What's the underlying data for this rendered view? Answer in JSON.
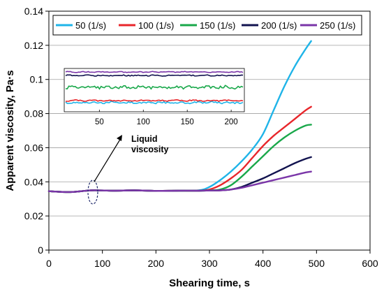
{
  "chart_data": {
    "type": "line",
    "xlabel": "Shearing time, s",
    "ylabel": "Apparent viscosity, Pa·s",
    "xlim": [
      0,
      600
    ],
    "ylim": [
      0,
      0.14
    ],
    "xticks": [
      0,
      100,
      200,
      300,
      400,
      500,
      600
    ],
    "yticks": [
      0,
      0.02,
      0.04,
      0.06,
      0.08,
      0.1,
      0.12,
      0.14
    ],
    "xtick_labels": [
      "0",
      "100",
      "200",
      "300",
      "400",
      "500",
      "600"
    ],
    "ytick_labels": [
      "0",
      "0.02",
      "0.04",
      "0.06",
      "0.08",
      "0.1",
      "0.12",
      "0.14"
    ],
    "grid": "horizontal",
    "legend_position": "top",
    "series": [
      {
        "name": "50  (1/s)",
        "color": "#1fb4e8",
        "x": [
          0,
          40,
          80,
          120,
          160,
          200,
          240,
          280,
          300,
          320,
          340,
          360,
          380,
          400,
          420,
          440,
          460,
          480,
          490
        ],
        "y": [
          0.0345,
          0.034,
          0.035,
          0.0348,
          0.035,
          0.0347,
          0.0348,
          0.035,
          0.037,
          0.041,
          0.046,
          0.052,
          0.059,
          0.068,
          0.082,
          0.096,
          0.108,
          0.118,
          0.1225
        ]
      },
      {
        "name": "100 (1/s)",
        "color": "#e8262b",
        "x": [
          0,
          40,
          80,
          120,
          160,
          200,
          240,
          280,
          300,
          320,
          340,
          360,
          380,
          400,
          420,
          440,
          460,
          480,
          490
        ],
        "y": [
          0.0345,
          0.034,
          0.035,
          0.0348,
          0.035,
          0.0347,
          0.0348,
          0.0348,
          0.0355,
          0.038,
          0.042,
          0.047,
          0.054,
          0.061,
          0.067,
          0.072,
          0.077,
          0.082,
          0.084
        ]
      },
      {
        "name": "150 (1/s)",
        "color": "#19a84a",
        "x": [
          0,
          40,
          80,
          120,
          160,
          200,
          240,
          280,
          300,
          320,
          340,
          360,
          380,
          400,
          420,
          440,
          460,
          480,
          490
        ],
        "y": [
          0.0345,
          0.034,
          0.035,
          0.0348,
          0.035,
          0.0347,
          0.0348,
          0.0348,
          0.035,
          0.0355,
          0.038,
          0.043,
          0.049,
          0.055,
          0.061,
          0.066,
          0.07,
          0.073,
          0.0735
        ]
      },
      {
        "name": "200 (1/s)",
        "color": "#12134f",
        "x": [
          0,
          40,
          80,
          120,
          160,
          200,
          240,
          280,
          300,
          320,
          340,
          360,
          380,
          400,
          420,
          440,
          460,
          480,
          490
        ],
        "y": [
          0.0345,
          0.034,
          0.035,
          0.0348,
          0.035,
          0.0347,
          0.0348,
          0.0348,
          0.0349,
          0.035,
          0.0355,
          0.037,
          0.0395,
          0.042,
          0.045,
          0.048,
          0.051,
          0.0535,
          0.0545
        ]
      },
      {
        "name": "250 (1/s)",
        "color": "#7a35a8",
        "x": [
          0,
          40,
          80,
          120,
          160,
          200,
          240,
          280,
          300,
          320,
          340,
          360,
          380,
          400,
          420,
          440,
          460,
          480,
          490
        ],
        "y": [
          0.0345,
          0.034,
          0.035,
          0.0348,
          0.035,
          0.0347,
          0.0348,
          0.0348,
          0.0349,
          0.035,
          0.0355,
          0.0365,
          0.038,
          0.0395,
          0.041,
          0.0425,
          0.044,
          0.0455,
          0.046
        ]
      }
    ],
    "annotation": "Liquid\nviscosity",
    "inset": {
      "xticks": [
        50,
        100,
        150,
        200
      ],
      "xtick_labels": [
        "50",
        "100",
        "150",
        "200"
      ],
      "xlim": [
        10,
        215
      ]
    }
  }
}
